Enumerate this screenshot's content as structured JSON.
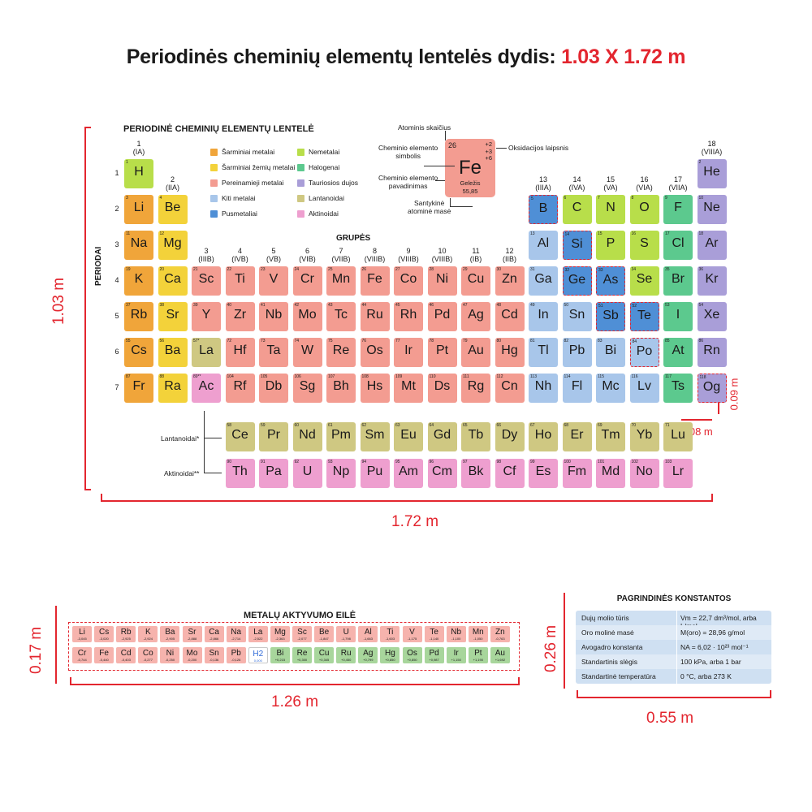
{
  "headline": {
    "main": "Periodinės cheminių elementų lentelės dydis:",
    "size": "1.03 X 1.72 m"
  },
  "dimensions": {
    "table_height": "1.03 m",
    "table_width": "1.72 m",
    "cell_height": "0.09 m",
    "cell_width": "0.08 m",
    "series_height": "0.17 m",
    "series_width": "1.26 m",
    "constants_height": "0.26 m",
    "constants_width": "0.55 m"
  },
  "colors": {
    "accent": "#e3262f",
    "alkali": "#f0a53a",
    "alkaline_earth": "#f3d23a",
    "transition": "#f39c91",
    "other_metal": "#a8c6ea",
    "metalloid": "#4f8fd6",
    "nonmetal": "#b8de4a",
    "halogen": "#5cc98e",
    "noble": "#a99ed8",
    "lanthanide": "#cfc882",
    "actinide": "#ee9fcf",
    "noble_gas": "#a99ed8"
  },
  "periodic_table": {
    "title": "PERIODINĖ CHEMINIŲ ELEMENTŲ LENTELĖ",
    "periods_label": "PERIODAI",
    "groups_label": "GRUPĖS",
    "groups": [
      "1\n(IA)",
      "2\n(IIA)",
      "3\n(IIIB)",
      "4\n(IVB)",
      "5\n(VB)",
      "6\n(VIB)",
      "7\n(VIIB)",
      "8\n(VIIIB)",
      "9\n(VIIIB)",
      "10\n(VIIIB)",
      "11\n(IB)",
      "12\n(IIB)",
      "13\n(IIIA)",
      "14\n(IVA)",
      "15\n(VA)",
      "16\n(VIA)",
      "17\n(VIIA)",
      "18\n(VIIIA)"
    ],
    "periods": [
      "1",
      "2",
      "3",
      "4",
      "5",
      "6",
      "7"
    ],
    "legend": [
      {
        "label": "Šarminiai metalai",
        "color": "#f0a53a"
      },
      {
        "label": "Šarminiai žemių metalai",
        "color": "#f3d23a"
      },
      {
        "label": "Pereinamieji metalai",
        "color": "#f39c91"
      },
      {
        "label": "Kiti metalai",
        "color": "#a8c6ea"
      },
      {
        "label": "Pusmetaliai",
        "color": "#4f8fd6"
      },
      {
        "label": "Nemetalai",
        "color": "#b8de4a"
      },
      {
        "label": "Halogenai",
        "color": "#5cc98e"
      },
      {
        "label": "Tauriosios dujos",
        "color": "#a99ed8"
      },
      {
        "label": "Lantanoidai",
        "color": "#cfc882"
      },
      {
        "label": "Aktinoidai",
        "color": "#ee9fcf"
      }
    ],
    "key": {
      "z": "26",
      "ox": "+2\n+3\n+6",
      "symbol": "Fe",
      "name": "Geležis",
      "mass": "55,85",
      "label_number": "Atominis skaičius",
      "label_ox": "Oksidacijos laipsnis",
      "label_symbol": "Cheminio elemento\nsimbolis",
      "label_name": "Cheminio elemento\npavadinimas",
      "label_mass": "Santykinė\natominė masė"
    },
    "series_labels": {
      "lanthanides": "Lantanoidai*",
      "actinides": "Aktinoidai**"
    },
    "elements": [
      {
        "z": "1",
        "s": "H",
        "c": "nonmetal",
        "col": 1,
        "row": 1
      },
      {
        "z": "2",
        "s": "He",
        "c": "noble",
        "col": 18,
        "row": 1
      },
      {
        "z": "3",
        "s": "Li",
        "c": "alkali",
        "col": 1,
        "row": 2
      },
      {
        "z": "4",
        "s": "Be",
        "c": "alkaline_earth",
        "col": 2,
        "row": 2
      },
      {
        "z": "5",
        "s": "B",
        "c": "metalloid",
        "col": 13,
        "row": 2,
        "d": 1
      },
      {
        "z": "6",
        "s": "C",
        "c": "nonmetal",
        "col": 14,
        "row": 2
      },
      {
        "z": "7",
        "s": "N",
        "c": "nonmetal",
        "col": 15,
        "row": 2
      },
      {
        "z": "8",
        "s": "O",
        "c": "nonmetal",
        "col": 16,
        "row": 2
      },
      {
        "z": "9",
        "s": "F",
        "c": "halogen",
        "col": 17,
        "row": 2
      },
      {
        "z": "10",
        "s": "Ne",
        "c": "noble",
        "col": 18,
        "row": 2
      },
      {
        "z": "11",
        "s": "Na",
        "c": "alkali",
        "col": 1,
        "row": 3
      },
      {
        "z": "12",
        "s": "Mg",
        "c": "alkaline_earth",
        "col": 2,
        "row": 3
      },
      {
        "z": "13",
        "s": "Al",
        "c": "other_metal",
        "col": 13,
        "row": 3
      },
      {
        "z": "14",
        "s": "Si",
        "c": "metalloid",
        "col": 14,
        "row": 3,
        "d": 1
      },
      {
        "z": "15",
        "s": "P",
        "c": "nonmetal",
        "col": 15,
        "row": 3
      },
      {
        "z": "16",
        "s": "S",
        "c": "nonmetal",
        "col": 16,
        "row": 3
      },
      {
        "z": "17",
        "s": "Cl",
        "c": "halogen",
        "col": 17,
        "row": 3
      },
      {
        "z": "18",
        "s": "Ar",
        "c": "noble",
        "col": 18,
        "row": 3
      },
      {
        "z": "19",
        "s": "K",
        "c": "alkali",
        "col": 1,
        "row": 4
      },
      {
        "z": "20",
        "s": "Ca",
        "c": "alkaline_earth",
        "col": 2,
        "row": 4
      },
      {
        "z": "21",
        "s": "Sc",
        "c": "transition",
        "col": 3,
        "row": 4
      },
      {
        "z": "22",
        "s": "Ti",
        "c": "transition",
        "col": 4,
        "row": 4
      },
      {
        "z": "23",
        "s": "V",
        "c": "transition",
        "col": 5,
        "row": 4
      },
      {
        "z": "24",
        "s": "Cr",
        "c": "transition",
        "col": 6,
        "row": 4
      },
      {
        "z": "25",
        "s": "Mn",
        "c": "transition",
        "col": 7,
        "row": 4
      },
      {
        "z": "26",
        "s": "Fe",
        "c": "transition",
        "col": 8,
        "row": 4
      },
      {
        "z": "27",
        "s": "Co",
        "c": "transition",
        "col": 9,
        "row": 4
      },
      {
        "z": "28",
        "s": "Ni",
        "c": "transition",
        "col": 10,
        "row": 4
      },
      {
        "z": "29",
        "s": "Cu",
        "c": "transition",
        "col": 11,
        "row": 4
      },
      {
        "z": "30",
        "s": "Zn",
        "c": "transition",
        "col": 12,
        "row": 4
      },
      {
        "z": "31",
        "s": "Ga",
        "c": "other_metal",
        "col": 13,
        "row": 4
      },
      {
        "z": "32",
        "s": "Ge",
        "c": "metalloid",
        "col": 14,
        "row": 4,
        "d": 1
      },
      {
        "z": "33",
        "s": "As",
        "c": "metalloid",
        "col": 15,
        "row": 4,
        "d": 1
      },
      {
        "z": "34",
        "s": "Se",
        "c": "nonmetal",
        "col": 16,
        "row": 4
      },
      {
        "z": "35",
        "s": "Br",
        "c": "halogen",
        "col": 17,
        "row": 4
      },
      {
        "z": "36",
        "s": "Kr",
        "c": "noble",
        "col": 18,
        "row": 4
      },
      {
        "z": "37",
        "s": "Rb",
        "c": "alkali",
        "col": 1,
        "row": 5
      },
      {
        "z": "38",
        "s": "Sr",
        "c": "alkaline_earth",
        "col": 2,
        "row": 5
      },
      {
        "z": "39",
        "s": "Y",
        "c": "transition",
        "col": 3,
        "row": 5
      },
      {
        "z": "40",
        "s": "Zr",
        "c": "transition",
        "col": 4,
        "row": 5
      },
      {
        "z": "41",
        "s": "Nb",
        "c": "transition",
        "col": 5,
        "row": 5
      },
      {
        "z": "42",
        "s": "Mo",
        "c": "transition",
        "col": 6,
        "row": 5
      },
      {
        "z": "43",
        "s": "Tc",
        "c": "transition",
        "col": 7,
        "row": 5
      },
      {
        "z": "44",
        "s": "Ru",
        "c": "transition",
        "col": 8,
        "row": 5
      },
      {
        "z": "45",
        "s": "Rh",
        "c": "transition",
        "col": 9,
        "row": 5
      },
      {
        "z": "46",
        "s": "Pd",
        "c": "transition",
        "col": 10,
        "row": 5
      },
      {
        "z": "47",
        "s": "Ag",
        "c": "transition",
        "col": 11,
        "row": 5
      },
      {
        "z": "48",
        "s": "Cd",
        "c": "transition",
        "col": 12,
        "row": 5
      },
      {
        "z": "49",
        "s": "In",
        "c": "other_metal",
        "col": 13,
        "row": 5
      },
      {
        "z": "50",
        "s": "Sn",
        "c": "other_metal",
        "col": 14,
        "row": 5
      },
      {
        "z": "51",
        "s": "Sb",
        "c": "metalloid",
        "col": 15,
        "row": 5,
        "d": 1
      },
      {
        "z": "52",
        "s": "Te",
        "c": "metalloid",
        "col": 16,
        "row": 5,
        "d": 1
      },
      {
        "z": "53",
        "s": "I",
        "c": "halogen",
        "col": 17,
        "row": 5
      },
      {
        "z": "54",
        "s": "Xe",
        "c": "noble",
        "col": 18,
        "row": 5
      },
      {
        "z": "55",
        "s": "Cs",
        "c": "alkali",
        "col": 1,
        "row": 6
      },
      {
        "z": "56",
        "s": "Ba",
        "c": "alkaline_earth",
        "col": 2,
        "row": 6
      },
      {
        "z": "57*",
        "s": "La",
        "c": "lanthanide",
        "col": 3,
        "row": 6
      },
      {
        "z": "72",
        "s": "Hf",
        "c": "transition",
        "col": 4,
        "row": 6
      },
      {
        "z": "73",
        "s": "Ta",
        "c": "transition",
        "col": 5,
        "row": 6
      },
      {
        "z": "74",
        "s": "W",
        "c": "transition",
        "col": 6,
        "row": 6
      },
      {
        "z": "75",
        "s": "Re",
        "c": "transition",
        "col": 7,
        "row": 6
      },
      {
        "z": "76",
        "s": "Os",
        "c": "transition",
        "col": 8,
        "row": 6
      },
      {
        "z": "77",
        "s": "Ir",
        "c": "transition",
        "col": 9,
        "row": 6
      },
      {
        "z": "78",
        "s": "Pt",
        "c": "transition",
        "col": 10,
        "row": 6
      },
      {
        "z": "79",
        "s": "Au",
        "c": "transition",
        "col": 11,
        "row": 6
      },
      {
        "z": "80",
        "s": "Hg",
        "c": "transition",
        "col": 12,
        "row": 6
      },
      {
        "z": "81",
        "s": "Tl",
        "c": "other_metal",
        "col": 13,
        "row": 6
      },
      {
        "z": "82",
        "s": "Pb",
        "c": "other_metal",
        "col": 14,
        "row": 6
      },
      {
        "z": "83",
        "s": "Bi",
        "c": "other_metal",
        "col": 15,
        "row": 6
      },
      {
        "z": "84",
        "s": "Po",
        "c": "other_metal",
        "col": 16,
        "row": 6,
        "d": 1
      },
      {
        "z": "85",
        "s": "At",
        "c": "halogen",
        "col": 17,
        "row": 6
      },
      {
        "z": "86",
        "s": "Rn",
        "c": "noble",
        "col": 18,
        "row": 6
      },
      {
        "z": "87",
        "s": "Fr",
        "c": "alkali",
        "col": 1,
        "row": 7
      },
      {
        "z": "88",
        "s": "Ra",
        "c": "alkaline_earth",
        "col": 2,
        "row": 7
      },
      {
        "z": "89**",
        "s": "Ac",
        "c": "actinide",
        "col": 3,
        "row": 7
      },
      {
        "z": "104",
        "s": "Rf",
        "c": "transition",
        "col": 4,
        "row": 7
      },
      {
        "z": "105",
        "s": "Db",
        "c": "transition",
        "col": 5,
        "row": 7
      },
      {
        "z": "106",
        "s": "Sg",
        "c": "transition",
        "col": 6,
        "row": 7
      },
      {
        "z": "107",
        "s": "Bh",
        "c": "transition",
        "col": 7,
        "row": 7
      },
      {
        "z": "108",
        "s": "Hs",
        "c": "transition",
        "col": 8,
        "row": 7
      },
      {
        "z": "109",
        "s": "Mt",
        "c": "transition",
        "col": 9,
        "row": 7
      },
      {
        "z": "110",
        "s": "Ds",
        "c": "transition",
        "col": 10,
        "row": 7
      },
      {
        "z": "111",
        "s": "Rg",
        "c": "transition",
        "col": 11,
        "row": 7
      },
      {
        "z": "112",
        "s": "Cn",
        "c": "transition",
        "col": 12,
        "row": 7
      },
      {
        "z": "113",
        "s": "Nh",
        "c": "other_metal",
        "col": 13,
        "row": 7
      },
      {
        "z": "114",
        "s": "Fl",
        "c": "other_metal",
        "col": 14,
        "row": 7
      },
      {
        "z": "115",
        "s": "Mc",
        "c": "other_metal",
        "col": 15,
        "row": 7
      },
      {
        "z": "116",
        "s": "Lv",
        "c": "other_metal",
        "col": 16,
        "row": 7
      },
      {
        "z": "117",
        "s": "Ts",
        "c": "halogen",
        "col": 17,
        "row": 7
      },
      {
        "z": "118",
        "s": "Og",
        "c": "noble",
        "col": 18,
        "row": 7,
        "d": 1
      }
    ],
    "lanthanides": [
      {
        "z": "58",
        "s": "Ce"
      },
      {
        "z": "59",
        "s": "Pr"
      },
      {
        "z": "60",
        "s": "Nd"
      },
      {
        "z": "61",
        "s": "Pm"
      },
      {
        "z": "62",
        "s": "Sm"
      },
      {
        "z": "63",
        "s": "Eu"
      },
      {
        "z": "64",
        "s": "Gd"
      },
      {
        "z": "65",
        "s": "Tb"
      },
      {
        "z": "66",
        "s": "Dy"
      },
      {
        "z": "67",
        "s": "Ho"
      },
      {
        "z": "68",
        "s": "Er"
      },
      {
        "z": "69",
        "s": "Tm"
      },
      {
        "z": "70",
        "s": "Yb"
      },
      {
        "z": "71",
        "s": "Lu"
      }
    ],
    "actinides": [
      {
        "z": "90",
        "s": "Th"
      },
      {
        "z": "91",
        "s": "Pa"
      },
      {
        "z": "92",
        "s": "U"
      },
      {
        "z": "93",
        "s": "Np"
      },
      {
        "z": "94",
        "s": "Pu"
      },
      {
        "z": "95",
        "s": "Am"
      },
      {
        "z": "96",
        "s": "Cm"
      },
      {
        "z": "97",
        "s": "Bk"
      },
      {
        "z": "98",
        "s": "Cf"
      },
      {
        "z": "99",
        "s": "Es"
      },
      {
        "z": "100",
        "s": "Fm"
      },
      {
        "z": "101",
        "s": "Md"
      },
      {
        "z": "102",
        "s": "No"
      },
      {
        "z": "103",
        "s": "Lr"
      }
    ]
  },
  "activity_series": {
    "title": "METALŲ AKTYVUMO EILĖ",
    "row1": [
      {
        "s": "Li",
        "v": "-3,045"
      },
      {
        "s": "Cs",
        "v": "-3,020"
      },
      {
        "s": "Rb",
        "v": "-2,925"
      },
      {
        "s": "K",
        "v": "-2,924"
      },
      {
        "s": "Ba",
        "v": "-2,905"
      },
      {
        "s": "Sr",
        "v": "-2,888"
      },
      {
        "s": "Ca",
        "v": "-2,866"
      },
      {
        "s": "Na",
        "v": "-2,714"
      },
      {
        "s": "La",
        "v": "-2,522"
      },
      {
        "s": "Mg",
        "v": "-2,363"
      },
      {
        "s": "Sc",
        "v": "-2,077"
      },
      {
        "s": "Be",
        "v": "-1,847"
      },
      {
        "s": "U",
        "v": "-1,798"
      },
      {
        "s": "Al",
        "v": "-1,663"
      },
      {
        "s": "Ti",
        "v": "-1,603"
      },
      {
        "s": "V",
        "v": "-1,175"
      },
      {
        "s": "Te",
        "v": "-1,140"
      },
      {
        "s": "Nb",
        "v": "-1,100"
      },
      {
        "s": "Mn",
        "v": "-1,050"
      },
      {
        "s": "Zn",
        "v": "-0,763"
      }
    ],
    "row2": [
      {
        "s": "Cr",
        "v": "-0,744",
        "c": "r"
      },
      {
        "s": "Fe",
        "v": "-0,440",
        "c": "r"
      },
      {
        "s": "Cd",
        "v": "-0,403",
        "c": "r"
      },
      {
        "s": "Co",
        "v": "-0,277",
        "c": "r"
      },
      {
        "s": "Ni",
        "v": "-0,250",
        "c": "r"
      },
      {
        "s": "Mo",
        "v": "-0,200",
        "c": "r"
      },
      {
        "s": "Sn",
        "v": "-0,136",
        "c": "r"
      },
      {
        "s": "Pb",
        "v": "-0,126",
        "c": "r"
      },
      {
        "s": "H2",
        "v": "0,000",
        "c": "h"
      },
      {
        "s": "Bi",
        "v": "+0,215",
        "c": "g"
      },
      {
        "s": "Re",
        "v": "+0,300",
        "c": "g"
      },
      {
        "s": "Cu",
        "v": "+0,345",
        "c": "g"
      },
      {
        "s": "Ru",
        "v": "+0,450",
        "c": "g"
      },
      {
        "s": "Ag",
        "v": "+0,799",
        "c": "g"
      },
      {
        "s": "Hg",
        "v": "+0,850",
        "c": "g"
      },
      {
        "s": "Os",
        "v": "+0,850",
        "c": "g"
      },
      {
        "s": "Pd",
        "v": "+0,987",
        "c": "g"
      },
      {
        "s": "Ir",
        "v": "+1,150",
        "c": "g"
      },
      {
        "s": "Pt",
        "v": "+1,190",
        "c": "g"
      },
      {
        "s": "Au",
        "v": "+1,692",
        "c": "g"
      }
    ]
  },
  "constants": {
    "title": "PAGRINDINĖS KONSTANTOS",
    "rows": [
      {
        "k": "Dujų molio tūris",
        "v": "Vm = 22,7 dm³/mol, arba L/mol"
      },
      {
        "k": "Oro molinė masė",
        "v": "M(oro) = 28,96 g/mol"
      },
      {
        "k": "Avogadro konstanta",
        "v": "NA = 6,02 · 10²³ mol⁻¹"
      },
      {
        "k": "Standartinis slėgis",
        "v": "100 kPa, arba 1 bar"
      },
      {
        "k": "Standartinė temperatūra",
        "v": "0 °C, arba 273 K"
      }
    ]
  }
}
